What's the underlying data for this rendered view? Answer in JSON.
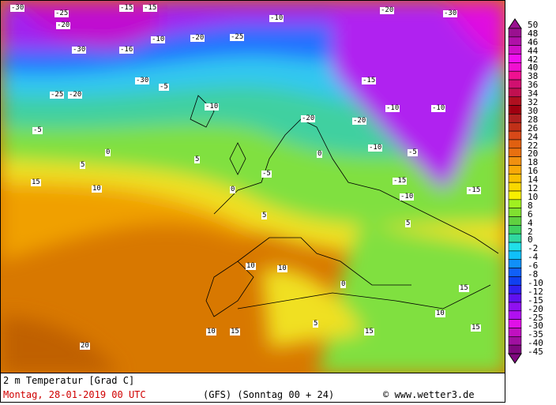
{
  "map": {
    "contour_labels": [
      "-30",
      "-25",
      "-15",
      "-20",
      "-30",
      "-15",
      "-10",
      "-20",
      "-30",
      "-20",
      "-25",
      "-10",
      "-16",
      "-30",
      "-20",
      "-5",
      "-10",
      "-25",
      "-20",
      "-10",
      "-5",
      "0",
      "5",
      "15",
      "10",
      "0",
      "5",
      "-5",
      "-10",
      "-15",
      "-20",
      "-10",
      "-15",
      "-5",
      "-10",
      "-15",
      "0",
      "5",
      "10",
      "15",
      "10",
      "5",
      "0",
      "20",
      "15",
      "10",
      "15",
      "5",
      "10",
      "15"
    ],
    "colors": {
      "ocean_warm": "#e8a000",
      "yellow": "#f0e020",
      "green": "#80e040",
      "cyan": "#30d0e0",
      "blue": "#2080ff",
      "purple": "#a020f0",
      "magenta": "#e020e0"
    }
  },
  "legend": {
    "labels": [
      "50",
      "48",
      "46",
      "44",
      "42",
      "40",
      "38",
      "36",
      "34",
      "32",
      "30",
      "28",
      "26",
      "24",
      "22",
      "20",
      "18",
      "16",
      "14",
      "12",
      "10",
      "8",
      "6",
      "4",
      "2",
      "0",
      "-2",
      "-4",
      "-6",
      "-8",
      "-10",
      "-12",
      "-15",
      "-20",
      "-25",
      "-30",
      "-35",
      "-40",
      "-45"
    ],
    "colors": [
      "#9a1090",
      "#b010a8",
      "#d010c8",
      "#f010f0",
      "#f010d0",
      "#f01090",
      "#d01070",
      "#c01050",
      "#b01020",
      "#a00010",
      "#b02020",
      "#c03018",
      "#d84818",
      "#e06010",
      "#e87010",
      "#f09010",
      "#f8a808",
      "#f8c000",
      "#f8d800",
      "#f8f000",
      "#a0f020",
      "#80e030",
      "#60d040",
      "#40d060",
      "#30d8a0",
      "#20e0e8",
      "#10c0f8",
      "#1090f8",
      "#1060f8",
      "#1040f0",
      "#3020f0",
      "#6010f0",
      "#9010f0",
      "#b010f0",
      "#e010e8",
      "#c010c0",
      "#a010a0",
      "#800880"
    ]
  },
  "footer": {
    "title": "2 m Temperatur [Grad C]",
    "date": "Montag, 28-01-2019  00 UTC",
    "model": "(GFS)  (Sonntag 00 + 24)",
    "credit": "© www.wetter3.de"
  }
}
